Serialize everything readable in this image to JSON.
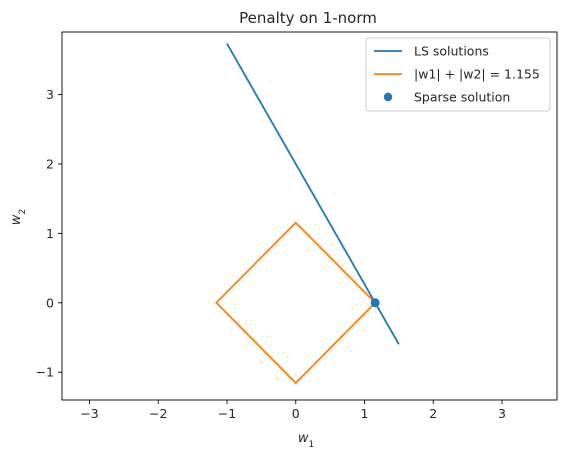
{
  "chart_data": {
    "type": "line",
    "title": "Penalty on 1-norm",
    "xlabel": "w",
    "xlabel_sub": "1",
    "ylabel": "w",
    "ylabel_sub": "2",
    "xlim": [
      -3.4,
      3.8
    ],
    "ylim": [
      -1.4,
      3.9
    ],
    "xticks": [
      -3,
      -2,
      -1,
      0,
      1,
      2,
      3
    ],
    "xtick_labels": [
      "−3",
      "−2",
      "−1",
      "0",
      "1",
      "2",
      "3"
    ],
    "yticks": [
      -1,
      0,
      1,
      2,
      3
    ],
    "ytick_labels": [
      "−1",
      "0",
      "1",
      "2",
      "3"
    ],
    "grid": false,
    "legend_position": "top-right",
    "series": [
      {
        "name": "LS solutions",
        "kind": "line",
        "color": "#1f77b4",
        "x": [
          -1.0,
          1.5
        ],
        "y": [
          3.732,
          -0.598
        ]
      },
      {
        "name": "|w1| + |w2| = 1.155",
        "kind": "line",
        "color": "#ff7f0e",
        "x": [
          1.155,
          0,
          -1.155,
          0,
          1.155
        ],
        "y": [
          0,
          1.155,
          0,
          -1.155,
          0
        ]
      },
      {
        "name": "Sparse solution",
        "kind": "point",
        "color": "#1f77b4",
        "x": [
          1.155
        ],
        "y": [
          0
        ]
      }
    ]
  }
}
